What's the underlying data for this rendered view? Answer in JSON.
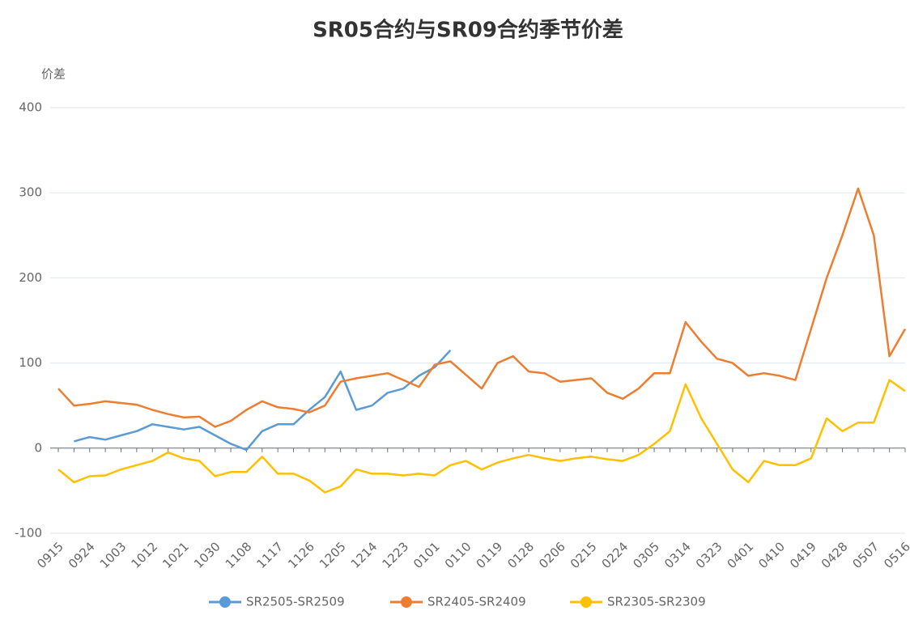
{
  "chart_data": {
    "type": "line",
    "title": "SR05合约与SR09合约季节价差",
    "y_label": "价差",
    "categories": [
      "0915",
      null,
      "0924",
      null,
      "1003",
      null,
      "1012",
      null,
      "1021",
      null,
      "1030",
      null,
      "1108",
      null,
      "1117",
      null,
      "1126",
      null,
      "1205",
      null,
      "1214",
      null,
      "1223",
      null,
      "0101",
      null,
      "0110",
      null,
      "0119",
      null,
      "0128",
      null,
      "0206",
      null,
      "0215",
      null,
      "0224",
      null,
      "0305",
      null,
      "0314",
      null,
      "0323",
      null,
      "0401",
      null,
      "0410",
      null,
      "0419",
      null,
      "0428",
      null,
      "0507",
      null,
      "0516"
    ],
    "series": [
      {
        "name": "SR2505-SR2509",
        "color": "#5b9bd5",
        "values": [
          null,
          8,
          13,
          10,
          15,
          20,
          28,
          25,
          22,
          25,
          15,
          5,
          -2,
          20,
          28,
          28,
          45,
          60,
          90,
          45,
          50,
          65,
          70,
          85,
          95,
          115,
          null,
          null,
          null,
          null,
          null,
          null,
          null,
          null,
          null,
          null,
          null,
          null,
          null,
          null,
          null,
          null,
          null,
          null,
          null,
          null,
          null,
          null,
          null,
          null,
          null,
          null,
          null,
          null,
          null
        ]
      },
      {
        "name": "SR2405-SR2409",
        "color": "#ed7d31",
        "values": [
          70,
          50,
          52,
          55,
          53,
          51,
          45,
          40,
          36,
          37,
          25,
          32,
          45,
          55,
          48,
          46,
          42,
          50,
          78,
          82,
          85,
          88,
          80,
          72,
          98,
          102,
          86,
          70,
          100,
          108,
          90,
          88,
          78,
          80,
          82,
          65,
          58,
          70,
          88,
          88,
          148,
          125,
          105,
          100,
          85,
          88,
          85,
          80,
          140,
          200,
          250,
          305,
          250,
          108,
          140
        ]
      },
      {
        "name": "SR2305-SR2309",
        "color": "#ffc000",
        "values": [
          -25,
          -40,
          -33,
          -32,
          -25,
          -20,
          -15,
          -5,
          -12,
          -15,
          -33,
          -28,
          -28,
          -10,
          -30,
          -30,
          -38,
          -52,
          -45,
          -25,
          -30,
          -30,
          -32,
          -30,
          -32,
          -20,
          -15,
          -25,
          -17,
          -12,
          -8,
          -12,
          -15,
          -12,
          -10,
          -13,
          -15,
          -8,
          5,
          20,
          75,
          35,
          5,
          -25,
          -40,
          -15,
          -20,
          -20,
          -12,
          35,
          20,
          30,
          30,
          80,
          67
        ]
      }
    ],
    "ylim": [
      -100,
      400
    ],
    "yticks": [
      -100,
      0,
      100,
      200,
      300,
      400
    ],
    "grid": true,
    "legend": "bottom"
  }
}
